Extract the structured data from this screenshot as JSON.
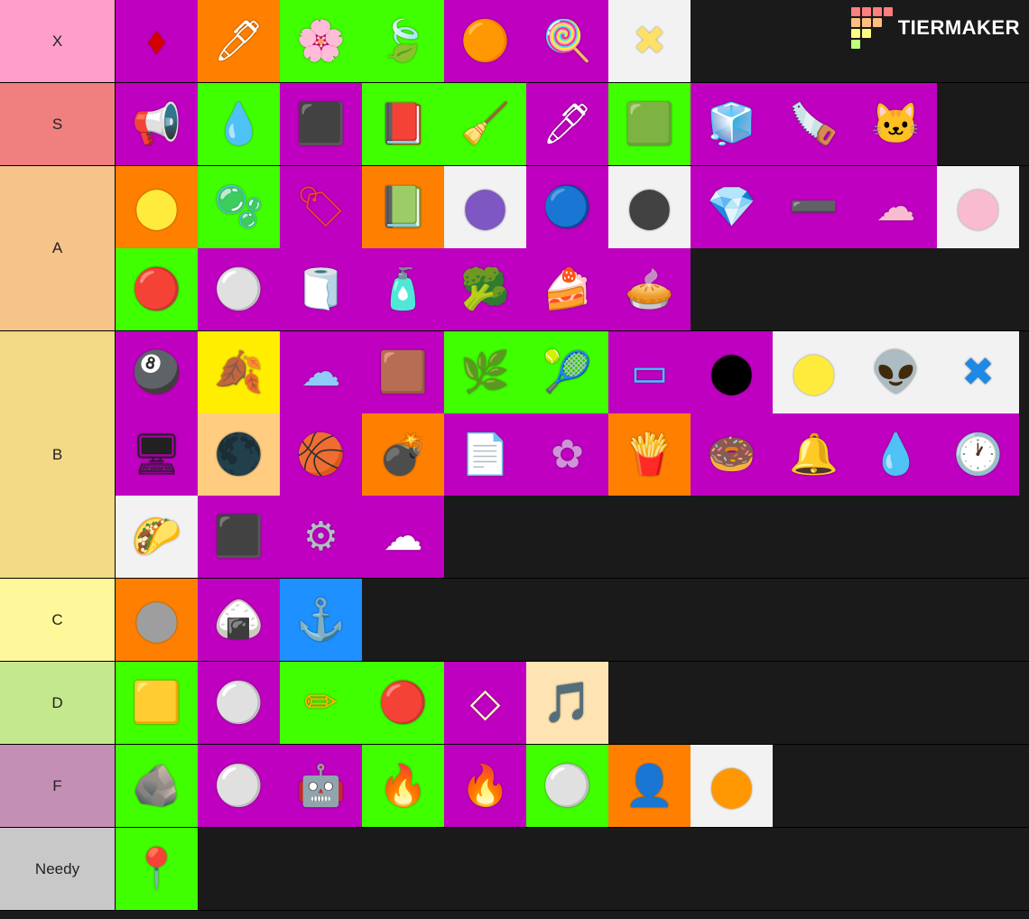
{
  "watermark": {
    "text": "TIERMAKER",
    "grid_colors": [
      "#ff7f7f",
      "#ff7f7f",
      "#ff7f7f",
      "#ff7f7f",
      "#ffbf7f",
      "#ffbf7f",
      "#ffbf7f",
      "#1a1a1a",
      "#ffff7f",
      "#ffff7f",
      "#1a1a1a",
      "#1a1a1a",
      "#bfff7f",
      "#1a1a1a",
      "#1a1a1a",
      "#1a1a1a"
    ]
  },
  "cell_size": 91,
  "label_width": 128,
  "background": "#1a1a1a",
  "tiers": [
    {
      "label": "X",
      "label_bg": "#ff9ecb",
      "items": [
        {
          "bg": "#c000c0",
          "glyph": "♦",
          "fg": "#d40000"
        },
        {
          "bg": "#ff8000",
          "glyph": "🖊",
          "fg": "#ffffff"
        },
        {
          "bg": "#40ff00",
          "glyph": "🌸",
          "fg": "#ffb6e6"
        },
        {
          "bg": "#40ff00",
          "glyph": "🍃",
          "fg": "#2e8b2e"
        },
        {
          "bg": "#c000c0",
          "glyph": "🟠",
          "fg": "#ff8000"
        },
        {
          "bg": "#c000c0",
          "glyph": "🍭",
          "fg": "#cba0ff"
        },
        {
          "bg": "#f2f2f2",
          "glyph": "✖",
          "fg": "#ffe066"
        }
      ]
    },
    {
      "label": "S",
      "label_bg": "#f08080",
      "items": [
        {
          "bg": "#c000c0",
          "glyph": "📢",
          "fg": "#2060ff"
        },
        {
          "bg": "#40ff00",
          "glyph": "💧",
          "fg": "#49c3ff"
        },
        {
          "bg": "#c000c0",
          "glyph": "⬛",
          "fg": "#fff176"
        },
        {
          "bg": "#40ff00",
          "glyph": "📕",
          "fg": "#c62828"
        },
        {
          "bg": "#40ff00",
          "glyph": "🧹",
          "fg": "#e57373"
        },
        {
          "bg": "#c000c0",
          "glyph": "🖊",
          "fg": "#ffffff"
        },
        {
          "bg": "#40ff00",
          "glyph": "🟩",
          "fg": "#4caf50"
        },
        {
          "bg": "#c000c0",
          "glyph": "🧊",
          "fg": "#e0f7fa"
        },
        {
          "bg": "#c000c0",
          "glyph": "🪚",
          "fg": "#ff5cc8"
        },
        {
          "bg": "#c000c0",
          "glyph": "🐱",
          "fg": "#ffffff"
        }
      ]
    },
    {
      "label": "A",
      "label_bg": "#f6c389",
      "items": [
        {
          "bg": "#ff8000",
          "glyph": "⬤",
          "fg": "#ffeb3b"
        },
        {
          "bg": "#40ff00",
          "glyph": "🫧",
          "fg": "#b3e5fc"
        },
        {
          "bg": "#c000c0",
          "glyph": "🏷",
          "fg": "#f44336"
        },
        {
          "bg": "#ff8000",
          "glyph": "📗",
          "fg": "#26a69a"
        },
        {
          "bg": "#f2f2f2",
          "glyph": "⬤",
          "fg": "#7e57c2"
        },
        {
          "bg": "#c000c0",
          "glyph": "🔵",
          "fg": "#1e88e5"
        },
        {
          "bg": "#f2f2f2",
          "glyph": "⬤",
          "fg": "#424242"
        },
        {
          "bg": "#c000c0",
          "glyph": "💎",
          "fg": "#80deea"
        },
        {
          "bg": "#c000c0",
          "glyph": "➖",
          "fg": "#e91e63"
        },
        {
          "bg": "#c000c0",
          "glyph": "☁",
          "fg": "#f8bbd0"
        },
        {
          "bg": "#f2f2f2",
          "glyph": "⬤",
          "fg": "#f8bbd0"
        },
        {
          "bg": "#40ff00",
          "glyph": "🔴",
          "fg": "#e53935"
        },
        {
          "bg": "#c000c0",
          "glyph": "⚪",
          "fg": "#fafafa"
        },
        {
          "bg": "#c000c0",
          "glyph": "🧻",
          "fg": "#bcaaa4"
        },
        {
          "bg": "#c000c0",
          "glyph": "🧴",
          "fg": "#f3e5f5"
        },
        {
          "bg": "#c000c0",
          "glyph": "🥦",
          "fg": "#2e7d32"
        },
        {
          "bg": "#c000c0",
          "glyph": "🍰",
          "fg": "#8d6e63"
        },
        {
          "bg": "#c000c0",
          "glyph": "🥧",
          "fg": "#b0bec5"
        }
      ]
    },
    {
      "label": "B",
      "label_bg": "#f2d986",
      "items": [
        {
          "bg": "#c000c0",
          "glyph": "🎱",
          "fg": "#000000"
        },
        {
          "bg": "#ffee00",
          "glyph": "🍂",
          "fg": "#d32f2f"
        },
        {
          "bg": "#c000c0",
          "glyph": "☁",
          "fg": "#90caf9"
        },
        {
          "bg": "#c000c0",
          "glyph": "🟫",
          "fg": "#c59b6d"
        },
        {
          "bg": "#40ff00",
          "glyph": "🌿",
          "fg": "#2e7d32"
        },
        {
          "bg": "#40ff00",
          "glyph": "🎾",
          "fg": "#cddc39"
        },
        {
          "bg": "#c000c0",
          "glyph": "▭",
          "fg": "#40c4ff"
        },
        {
          "bg": "#c000c0",
          "glyph": "⬤",
          "fg": "#000000"
        },
        {
          "bg": "#f2f2f2",
          "glyph": "⬤",
          "fg": "#ffeb3b"
        },
        {
          "bg": "#f2f2f2",
          "glyph": "👽",
          "fg": "#66bb6a"
        },
        {
          "bg": "#f2f2f2",
          "glyph": "✖",
          "fg": "#1e88e5"
        },
        {
          "bg": "#c000c0",
          "glyph": "🖥",
          "fg": "#212121"
        },
        {
          "bg": "#ffcc80",
          "glyph": "🌑",
          "fg": "#9e9e9e"
        },
        {
          "bg": "#c000c0",
          "glyph": "🏀",
          "fg": "#ff7043"
        },
        {
          "bg": "#ff8000",
          "glyph": "💣",
          "fg": "#212121"
        },
        {
          "bg": "#c000c0",
          "glyph": "📄",
          "fg": "#e3f2fd"
        },
        {
          "bg": "#c000c0",
          "glyph": "✿",
          "fg": "#ce93d8"
        },
        {
          "bg": "#ff8000",
          "glyph": "🍟",
          "fg": "#ef5350"
        },
        {
          "bg": "#c000c0",
          "glyph": "🍩",
          "fg": "#ffb74d"
        },
        {
          "bg": "#c000c0",
          "glyph": "🔔",
          "fg": "#ffe082"
        },
        {
          "bg": "#c000c0",
          "glyph": "💧",
          "fg": "#26a69a"
        },
        {
          "bg": "#c000c0",
          "glyph": "🕐",
          "fg": "#90caf9"
        },
        {
          "bg": "#f2f2f2",
          "glyph": "🌮",
          "fg": "#a5d6a7"
        },
        {
          "bg": "#c000c0",
          "glyph": "⬛",
          "fg": "#424242"
        },
        {
          "bg": "#c000c0",
          "glyph": "⚙",
          "fg": "#b0bec5"
        },
        {
          "bg": "#c000c0",
          "glyph": "☁",
          "fg": "#ffffff"
        }
      ]
    },
    {
      "label": "C",
      "label_bg": "#fff89a",
      "items": [
        {
          "bg": "#ff8000",
          "glyph": "⬤",
          "fg": "#9e9e9e"
        },
        {
          "bg": "#c000c0",
          "glyph": "🍙",
          "fg": "#ffffff"
        },
        {
          "bg": "#1e90ff",
          "glyph": "⚓",
          "fg": "#424242"
        }
      ]
    },
    {
      "label": "D",
      "label_bg": "#c3e88d",
      "items": [
        {
          "bg": "#40ff00",
          "glyph": "🟨",
          "fg": "#ffd54f"
        },
        {
          "bg": "#c000c0",
          "glyph": "⚪",
          "fg": "#ffffff"
        },
        {
          "bg": "#40ff00",
          "glyph": "✏",
          "fg": "#ffb300"
        },
        {
          "bg": "#40ff00",
          "glyph": "🔴",
          "fg": "#e53935"
        },
        {
          "bg": "#c000c0",
          "glyph": "◇",
          "fg": "#fff9c4"
        },
        {
          "bg": "#ffe4b3",
          "glyph": "🎵",
          "fg": "#eceff1"
        }
      ]
    },
    {
      "label": "F",
      "label_bg": "#c48fb5",
      "items": [
        {
          "bg": "#40ff00",
          "glyph": "🪨",
          "fg": "#757575"
        },
        {
          "bg": "#c000c0",
          "glyph": "⚪",
          "fg": "#ffffff"
        },
        {
          "bg": "#c000c0",
          "glyph": "🤖",
          "fg": "#e53935"
        },
        {
          "bg": "#40ff00",
          "glyph": "🔥",
          "fg": "#ff9800"
        },
        {
          "bg": "#c000c0",
          "glyph": "🔥",
          "fg": "#ff9800"
        },
        {
          "bg": "#40ff00",
          "glyph": "⚪",
          "fg": "#ffffff"
        },
        {
          "bg": "#ff8000",
          "glyph": "👤",
          "fg": "#ffffff"
        },
        {
          "bg": "#f2f2f2",
          "glyph": "⬤",
          "fg": "#ff9800"
        }
      ]
    },
    {
      "label": "Needy",
      "label_bg": "#c8c8c8",
      "items": [
        {
          "bg": "#40ff00",
          "glyph": "📍",
          "fg": "#9e9e9e"
        }
      ]
    }
  ]
}
